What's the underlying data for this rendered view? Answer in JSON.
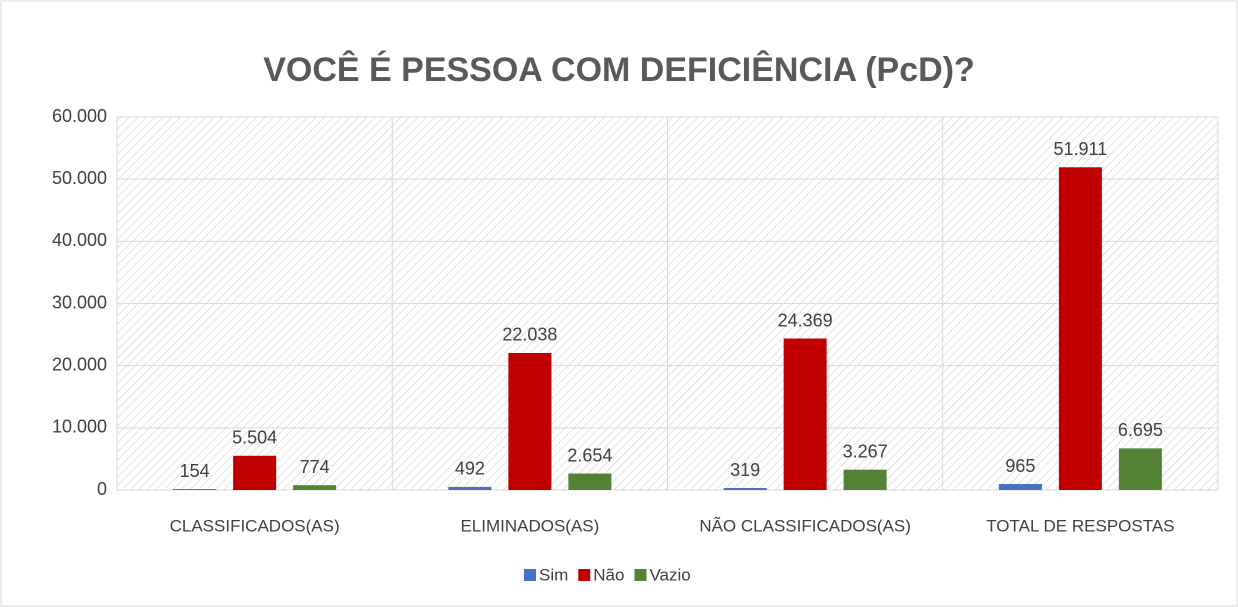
{
  "chart_data": {
    "type": "bar",
    "title": "VOCÊ É PESSOA COM DEFICIÊNCIA (PcD)?",
    "categories": [
      "CLASSIFICADOS(AS)",
      "ELIMINADOS(AS)",
      "NÃO CLASSIFICADOS(AS)",
      "TOTAL DE RESPOSTAS"
    ],
    "series": [
      {
        "name": "Sim",
        "color": "#4472c4",
        "values": [
          154,
          492,
          319,
          965
        ],
        "value_labels": [
          "154",
          "492",
          "319",
          "965"
        ]
      },
      {
        "name": "Não",
        "color": "#c00000",
        "values": [
          5504,
          22038,
          24369,
          51911
        ],
        "value_labels": [
          "5.504",
          "22.038",
          "24.369",
          "51.911"
        ]
      },
      {
        "name": "Vazio",
        "color": "#548235",
        "values": [
          774,
          2654,
          3267,
          6695
        ],
        "value_labels": [
          "774",
          "2.654",
          "3.267",
          "6.695"
        ]
      }
    ],
    "ylim": [
      0,
      60000
    ],
    "yticks": [
      0,
      {
        "value": 10000,
        "label": "10.000"
      },
      {
        "value": 20000,
        "label": "20.000"
      },
      {
        "value": 30000,
        "label": "30.000"
      },
      {
        "value": 40000,
        "label": "40.000"
      },
      {
        "value": 50000,
        "label": "50.000"
      },
      {
        "value": 60000,
        "label": "60.000"
      }
    ],
    "grid": true,
    "legend": "bottom"
  }
}
